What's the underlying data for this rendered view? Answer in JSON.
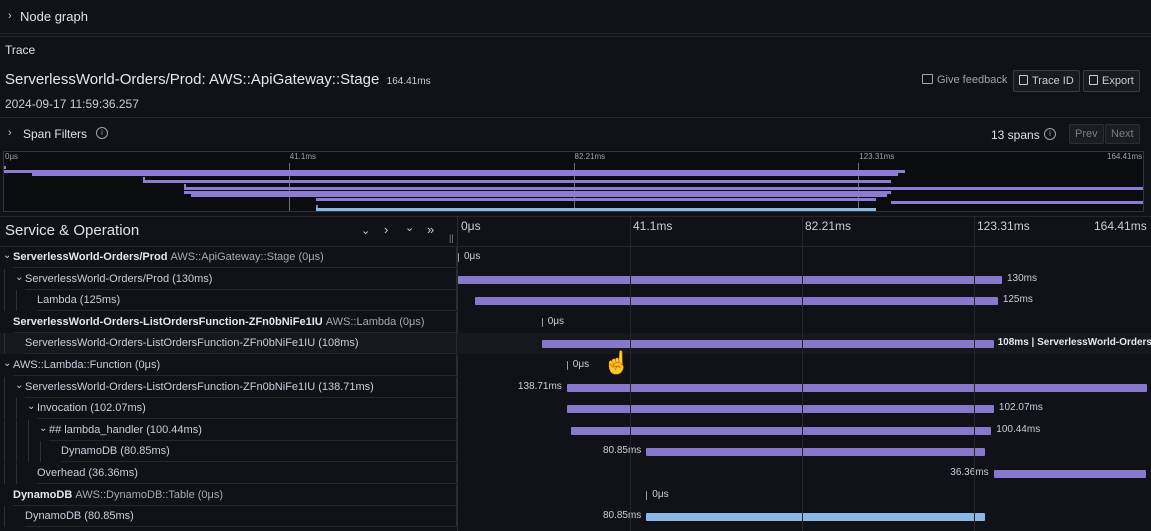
{
  "node_graph": {
    "label": "Node graph"
  },
  "trace_section": {
    "label": "Trace"
  },
  "trace": {
    "title": "ServerlessWorld-Orders/Prod: AWS::ApiGateway::Stage",
    "duration": "164.41ms",
    "date": "2024-09-17 11:59:36.257",
    "give_feedback": "Give feedback",
    "trace_id_btn": "Trace ID",
    "export_btn": "Export"
  },
  "span_filters": {
    "label": "Span Filters",
    "count": "13 spans",
    "prev": "Prev",
    "next": "Next"
  },
  "minimap_ticks": [
    "0μs",
    "41.1ms",
    "82.21ms",
    "123.31ms",
    "164.41ms"
  ],
  "timeline_ticks": [
    "0μs",
    "41.1ms",
    "82.21ms",
    "123.31ms",
    "164.41ms"
  ],
  "header": {
    "service_operation": "Service & Operation"
  },
  "colors": {
    "bar": "#8878cc",
    "bar_selected": "#8ab8e6",
    "background": "#111217"
  },
  "rows": [
    {
      "name": "ServerlessWorld-Orders/Prod",
      "op": "AWS::ApiGateway::Stage (0μs)",
      "bold": true,
      "bar_label": "0μs",
      "start_ms": 0,
      "dur_ms": 0
    },
    {
      "name": "ServerlessWorld-Orders/Prod (130ms)",
      "op": "",
      "bold": false,
      "bar_label": "130ms",
      "start_ms": 0,
      "dur_ms": 130
    },
    {
      "name": "Lambda (125ms)",
      "op": "",
      "bold": false,
      "bar_label": "125ms",
      "start_ms": 4,
      "dur_ms": 125
    },
    {
      "name": "ServerlessWorld-Orders-ListOrdersFunction-ZFn0bNiFe1IU",
      "op": "AWS::Lambda (0μs)",
      "bold": true,
      "bar_label": "0μs",
      "start_ms": 20,
      "dur_ms": 0
    },
    {
      "name": "ServerlessWorld-Orders-ListOrdersFunction-ZFn0bNiFe1IU (108ms)",
      "op": "",
      "bold": false,
      "bar_label": "108ms | ServerlessWorld-Orders",
      "start_ms": 20,
      "dur_ms": 108
    },
    {
      "name": "AWS::Lambda::Function (0μs)",
      "op": "",
      "bold": false,
      "bar_label": "0μs",
      "start_ms": 26,
      "dur_ms": 0
    },
    {
      "name": "ServerlessWorld-Orders-ListOrdersFunction-ZFn0bNiFe1IU (138.71ms)",
      "op": "",
      "bold": false,
      "bar_label": "138.71ms",
      "start_ms": 26,
      "dur_ms": 138.71
    },
    {
      "name": "Invocation (102.07ms)",
      "op": "",
      "bold": false,
      "bar_label": "102.07ms",
      "start_ms": 26,
      "dur_ms": 102.07
    },
    {
      "name": "## lambda_handler (100.44ms)",
      "op": "",
      "bold": false,
      "bar_label": "100.44ms",
      "start_ms": 27,
      "dur_ms": 100.44
    },
    {
      "name": "DynamoDB (80.85ms)",
      "op": "",
      "bold": false,
      "bar_label": "80.85ms",
      "start_ms": 45,
      "dur_ms": 80.85
    },
    {
      "name": "Overhead (36.36ms)",
      "op": "",
      "bold": false,
      "bar_label": "36.36ms",
      "start_ms": 128,
      "dur_ms": 36.36
    },
    {
      "name": "DynamoDB",
      "op": "AWS::DynamoDB::Table (0μs)",
      "bold": true,
      "bar_label": "0μs",
      "start_ms": 45,
      "dur_ms": 0
    },
    {
      "name": "DynamoDB (80.85ms)",
      "op": "",
      "bold": false,
      "bar_label": "80.85ms",
      "start_ms": 45,
      "dur_ms": 80.85
    }
  ]
}
